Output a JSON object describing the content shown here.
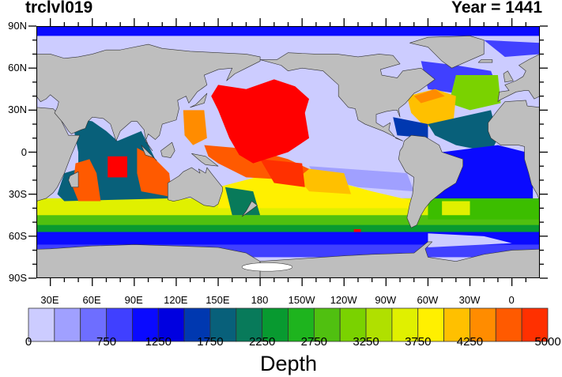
{
  "plot": {
    "title": "trclvl019",
    "right_title": "Year = 1441",
    "lat_labels": [
      "90N",
      "60N",
      "30N",
      "0",
      "30S",
      "60S",
      "90S"
    ],
    "lon_labels": [
      "30E",
      "60E",
      "90E",
      "120E",
      "150E",
      "180",
      "150W",
      "120W",
      "90W",
      "60W",
      "30W",
      "0"
    ],
    "land_color": "#bebebe",
    "ice_color": "#ffffff"
  },
  "colorbar": {
    "title": "Depth",
    "colors": [
      "#ccccff",
      "#a0a0ff",
      "#6e6eff",
      "#4040ff",
      "#0a0aff",
      "#0000e0",
      "#0038b0",
      "#08607a",
      "#087a5a",
      "#089a30",
      "#1eb41e",
      "#50c010",
      "#7ad200",
      "#b0e000",
      "#e0f000",
      "#fff000",
      "#ffc000",
      "#ff8c00",
      "#ff5a00",
      "#ff3000"
    ],
    "min": 0,
    "max": 5000,
    "labels": [
      {
        "value": 0,
        "text": "0"
      },
      {
        "value": 750,
        "text": "750"
      },
      {
        "value": 1250,
        "text": "1250"
      },
      {
        "value": 1750,
        "text": "1750"
      },
      {
        "value": 2250,
        "text": "2250"
      },
      {
        "value": 2750,
        "text": "2750"
      },
      {
        "value": 3250,
        "text": "3250"
      },
      {
        "value": 3750,
        "text": "3750"
      },
      {
        "value": 4250,
        "text": "4250"
      },
      {
        "value": 5000,
        "text": "5000"
      }
    ]
  }
}
